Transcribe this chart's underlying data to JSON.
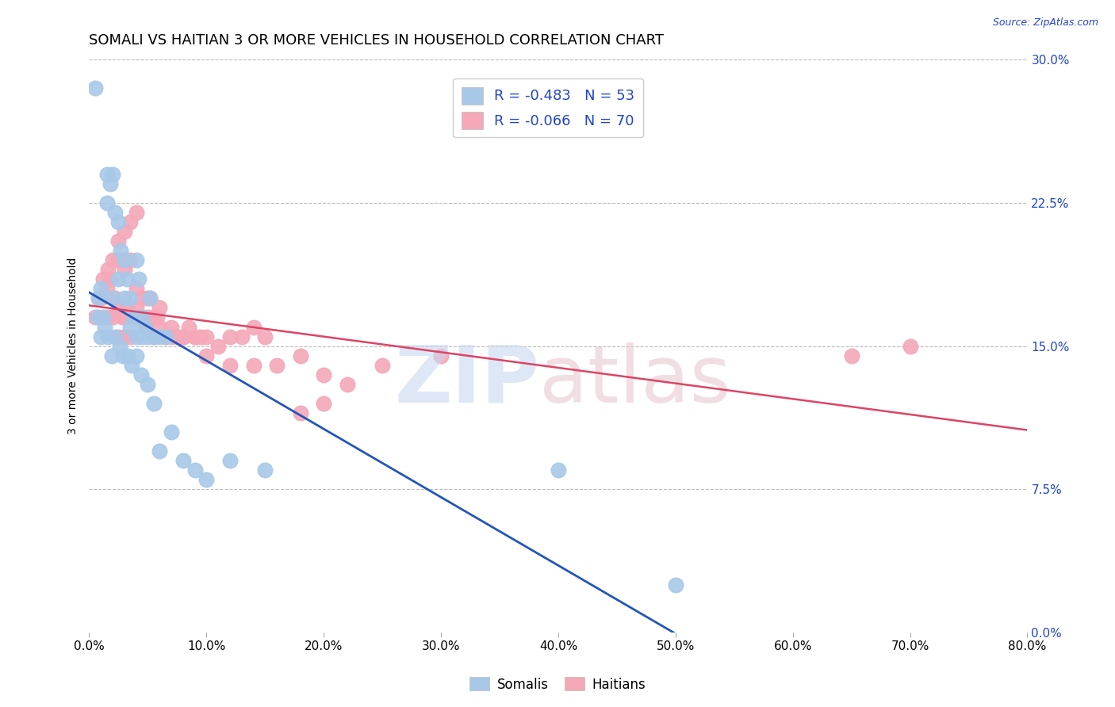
{
  "title": "SOMALI VS HAITIAN 3 OR MORE VEHICLES IN HOUSEHOLD CORRELATION CHART",
  "source": "Source: ZipAtlas.com",
  "ylabel": "3 or more Vehicles in Household",
  "xlim": [
    0.0,
    0.8
  ],
  "ylim": [
    0.0,
    0.3
  ],
  "somali_R": -0.483,
  "somali_N": 53,
  "haitian_R": -0.066,
  "haitian_N": 70,
  "somali_color": "#a8c8e8",
  "somali_line_color": "#2255bb",
  "haitian_color": "#f4a8b8",
  "haitian_line_color": "#dd4466",
  "background_color": "#ffffff",
  "grid_color": "#bbbbbb",
  "legend_text_color": "#2244cc",
  "title_fontsize": 13,
  "somali_x": [
    0.005,
    0.008,
    0.01,
    0.012,
    0.015,
    0.015,
    0.018,
    0.02,
    0.02,
    0.022,
    0.025,
    0.025,
    0.027,
    0.03,
    0.03,
    0.032,
    0.035,
    0.035,
    0.038,
    0.04,
    0.04,
    0.042,
    0.045,
    0.045,
    0.048,
    0.05,
    0.052,
    0.055,
    0.06,
    0.065,
    0.007,
    0.01,
    0.013,
    0.016,
    0.019,
    0.022,
    0.026,
    0.029,
    0.033,
    0.036,
    0.04,
    0.044,
    0.05,
    0.055,
    0.06,
    0.07,
    0.08,
    0.09,
    0.1,
    0.12,
    0.15,
    0.4,
    0.5
  ],
  "somali_y": [
    0.285,
    0.175,
    0.18,
    0.165,
    0.225,
    0.24,
    0.235,
    0.24,
    0.175,
    0.22,
    0.215,
    0.185,
    0.2,
    0.195,
    0.175,
    0.185,
    0.175,
    0.16,
    0.165,
    0.195,
    0.155,
    0.185,
    0.165,
    0.155,
    0.16,
    0.155,
    0.175,
    0.155,
    0.155,
    0.155,
    0.165,
    0.155,
    0.16,
    0.155,
    0.145,
    0.155,
    0.15,
    0.145,
    0.145,
    0.14,
    0.145,
    0.135,
    0.13,
    0.12,
    0.095,
    0.105,
    0.09,
    0.085,
    0.08,
    0.09,
    0.085,
    0.085,
    0.025
  ],
  "haitian_x": [
    0.005,
    0.008,
    0.01,
    0.012,
    0.015,
    0.015,
    0.018,
    0.02,
    0.022,
    0.025,
    0.025,
    0.028,
    0.03,
    0.03,
    0.032,
    0.035,
    0.035,
    0.038,
    0.04,
    0.042,
    0.045,
    0.048,
    0.05,
    0.052,
    0.055,
    0.058,
    0.06,
    0.065,
    0.07,
    0.075,
    0.08,
    0.085,
    0.09,
    0.095,
    0.1,
    0.11,
    0.12,
    0.13,
    0.14,
    0.15,
    0.016,
    0.02,
    0.025,
    0.03,
    0.035,
    0.04,
    0.045,
    0.05,
    0.055,
    0.06,
    0.07,
    0.08,
    0.09,
    0.1,
    0.12,
    0.14,
    0.16,
    0.18,
    0.2,
    0.22,
    0.025,
    0.03,
    0.035,
    0.04,
    0.18,
    0.2,
    0.25,
    0.3,
    0.65,
    0.7
  ],
  "haitian_y": [
    0.165,
    0.175,
    0.175,
    0.185,
    0.18,
    0.165,
    0.185,
    0.165,
    0.175,
    0.17,
    0.155,
    0.165,
    0.165,
    0.155,
    0.17,
    0.165,
    0.155,
    0.165,
    0.17,
    0.165,
    0.165,
    0.16,
    0.165,
    0.175,
    0.155,
    0.165,
    0.16,
    0.155,
    0.16,
    0.155,
    0.155,
    0.16,
    0.155,
    0.155,
    0.155,
    0.15,
    0.155,
    0.155,
    0.16,
    0.155,
    0.19,
    0.195,
    0.195,
    0.19,
    0.195,
    0.18,
    0.175,
    0.175,
    0.165,
    0.17,
    0.155,
    0.155,
    0.155,
    0.145,
    0.14,
    0.14,
    0.14,
    0.145,
    0.135,
    0.13,
    0.205,
    0.21,
    0.215,
    0.22,
    0.115,
    0.12,
    0.14,
    0.145,
    0.145,
    0.15
  ],
  "watermark_zip_color": "#c8d8f0",
  "watermark_atlas_color": "#e8c8d0"
}
